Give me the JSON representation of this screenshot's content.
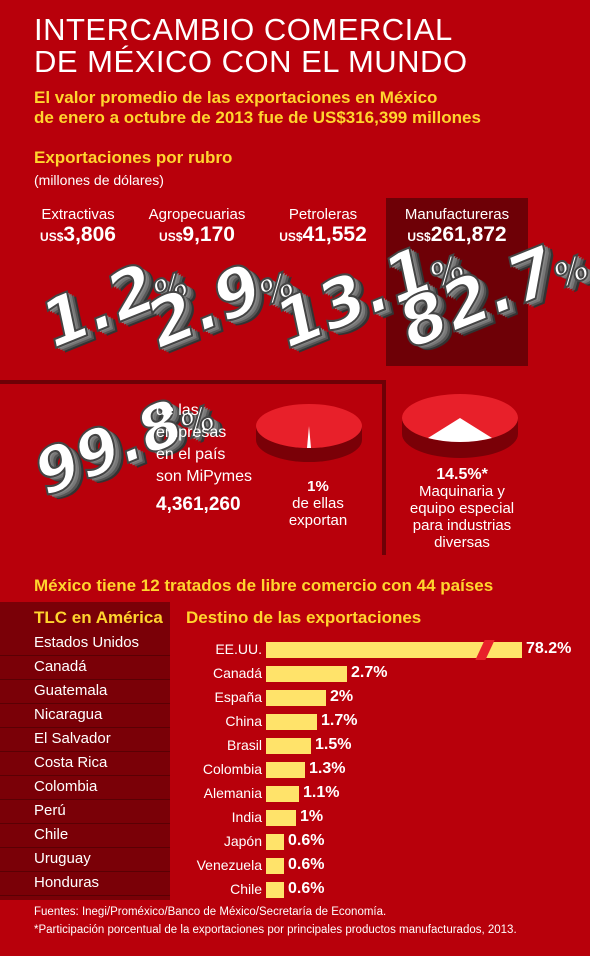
{
  "header": {
    "title_line1": "INTERCAMBIO COMERCIAL",
    "title_line2": "DE MÉXICO CON EL MUNDO",
    "subtitle_line1": "El valor promedio de las exportaciones en México",
    "subtitle_line2": "de enero a octubre de 2013 fue de  US$316,399 millones"
  },
  "rubros": {
    "title": "Exportaciones por rubro",
    "unit": "(millones de dólares)",
    "items": [
      {
        "name": "Extractivas",
        "currency": "US$",
        "value": "3,806",
        "pct": "1.2",
        "pct_sign": "%"
      },
      {
        "name": "Agropecuarias",
        "currency": "US$",
        "value": "9,170",
        "pct": "2.9",
        "pct_sign": "%"
      },
      {
        "name": "Petroleras",
        "currency": "US$",
        "value": "41,552",
        "pct": "13.1",
        "pct_sign": "%"
      },
      {
        "name": "Manufactureras",
        "currency": "US$",
        "value": "261,872",
        "pct": "82.7",
        "pct_sign": "%"
      }
    ]
  },
  "mipymes": {
    "pct": "99.8",
    "pct_sign": "%",
    "text_l1": "de las",
    "text_l2": "empresas",
    "text_l3": "en el país",
    "text_l4": "son MiPymes",
    "count": "4,361,260",
    "pie_pct": "1%",
    "pie_l1": "de ellas",
    "pie_l2": "exportan"
  },
  "maquinaria": {
    "pct": "14.5%*",
    "l1": "Maquinaria y",
    "l2": "equipo especial",
    "l3": "para industrias",
    "l4": "diversas"
  },
  "tratados": {
    "headline": "México tiene 12 tratados de libre comercio con 44 países",
    "tlc_title": "TLC en América",
    "countries": [
      "Estados Unidos",
      "Canadá",
      "Guatemala",
      "Nicaragua",
      "El Salvador",
      "Costa Rica",
      "Colombia",
      "Perú",
      "Chile",
      "Uruguay",
      "Honduras"
    ]
  },
  "chart_data": {
    "type": "bar",
    "title": "Destino de las exportaciones",
    "categories": [
      "EE.UU.",
      "Canadá",
      "España",
      "China",
      "Brasil",
      "Colombia",
      "Alemania",
      "India",
      "Japón",
      "Venezuela",
      "Chile"
    ],
    "values": [
      78.2,
      2.7,
      2,
      1.7,
      1.5,
      1.3,
      1.1,
      1,
      0.6,
      0.6,
      0.6
    ],
    "labels": [
      "78.2%",
      "2.7%",
      "2%",
      "1.7%",
      "1.5%",
      "1.3%",
      "1.1%",
      "1%",
      "0.6%",
      "0.6%",
      "0.6%"
    ],
    "axis_break_on_first": true,
    "colors": {
      "bar": "#ffe36a",
      "background": "#b8000b"
    }
  },
  "footer": {
    "sources": "Fuentes: Inegi/Proméxico/Banco de México/Secretaría de Economía.",
    "note": "*Participación porcentual de la exportaciones por principales productos manufacturados, 2013."
  }
}
